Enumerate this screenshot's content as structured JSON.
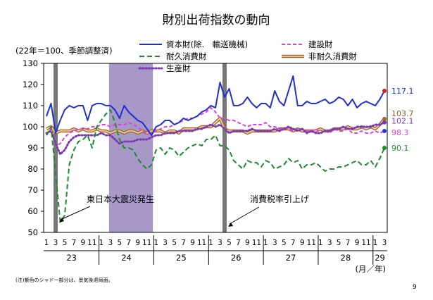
{
  "page_number": "9",
  "chart_data": {
    "type": "line",
    "title": "財別出荷指数の動向",
    "subtitle": "(22年＝100、季節調整済)",
    "x_unit_label": "(月／年)",
    "note": "(注)紫色のシャドー部分は、景気後退局面。",
    "ylim": [
      50,
      130
    ],
    "yticks": [
      50,
      60,
      70,
      80,
      90,
      100,
      110,
      120,
      130
    ],
    "x_month_labels": [
      "1",
      "3",
      "5",
      "7",
      "9",
      "11",
      "1",
      "3",
      "5",
      "7",
      "9",
      "11",
      "1",
      "3",
      "5",
      "7",
      "9",
      "11",
      "1",
      "3",
      "5",
      "7",
      "9",
      "11",
      "1",
      "3",
      "5",
      "7",
      "9",
      "11",
      "1",
      "3",
      "5",
      "7",
      "9",
      "11",
      "1",
      "3"
    ],
    "years": [
      {
        "label": "23",
        "start": 0,
        "end": 11
      },
      {
        "label": "24",
        "start": 12,
        "end": 23
      },
      {
        "label": "25",
        "start": 24,
        "end": 35
      },
      {
        "label": "26",
        "start": 36,
        "end": 47
      },
      {
        "label": "27",
        "start": 48,
        "end": 59
      },
      {
        "label": "28",
        "start": 60,
        "end": 71
      },
      {
        "label": "29",
        "start": 72,
        "end": 74
      }
    ],
    "recession_shades": [
      {
        "start": 14,
        "end": 23
      }
    ],
    "event_lines": [
      {
        "index": 2,
        "label": "東日本大震災発生"
      },
      {
        "index": 39,
        "label": "消費税率引上げ"
      }
    ],
    "series": [
      {
        "name": "資本財(除.　輸送機械)",
        "color": "#1f2fd0",
        "style": "solid",
        "end_label": "117.1",
        "values": [
          105,
          111,
          97,
          103,
          108,
          110,
          109,
          110,
          110,
          103,
          110,
          111,
          111,
          110,
          110,
          108,
          104,
          110,
          107,
          105,
          103,
          102,
          99,
          96,
          100,
          101,
          103,
          103,
          101,
          102,
          104,
          103,
          104,
          105,
          107,
          108,
          110,
          109,
          121,
          114,
          118,
          110,
          110,
          111,
          114,
          111,
          109,
          111,
          111,
          109,
          117,
          112,
          110,
          117,
          124,
          110,
          110,
          112,
          111,
          111,
          112,
          113,
          111,
          112,
          114,
          113,
          110,
          113,
          109,
          111,
          112,
          111,
          110,
          113,
          117
        ]
      },
      {
        "name": "建設財",
        "color": "#e040e0",
        "style": "dashed",
        "end_label": "98.3",
        "values": [
          96,
          99,
          91,
          92,
          95,
          97,
          98,
          99,
          99,
          99,
          100,
          100,
          101,
          101,
          100,
          101,
          101,
          101,
          102,
          101,
          100,
          98,
          97,
          97,
          98,
          99,
          100,
          100,
          101,
          102,
          103,
          104,
          104,
          105,
          106,
          107,
          109,
          107,
          104,
          104,
          103,
          103,
          102,
          101,
          100,
          101,
          101,
          101,
          102,
          100,
          100,
          99,
          99,
          99,
          98,
          99,
          99,
          98,
          98,
          99,
          97,
          98,
          97,
          99,
          98,
          98,
          99,
          97,
          97,
          98,
          97,
          97,
          98,
          97,
          98
        ]
      },
      {
        "name": "耐久消費財",
        "color": "#1e8a2e",
        "style": "dashed",
        "end_label": "90.1",
        "values": [
          96,
          100,
          78,
          55,
          58,
          82,
          89,
          93,
          94,
          96,
          90,
          100,
          103,
          106,
          108,
          102,
          94,
          90,
          90,
          89,
          85,
          82,
          80,
          82,
          89,
          90,
          87,
          90,
          89,
          86,
          88,
          90,
          91,
          92,
          91,
          94,
          94,
          96,
          91,
          91,
          89,
          84,
          82,
          80,
          84,
          83,
          83,
          81,
          84,
          83,
          80,
          81,
          82,
          85,
          83,
          84,
          80,
          82,
          82,
          83,
          81,
          79,
          80,
          80,
          81,
          81,
          82,
          83,
          84,
          82,
          82,
          84,
          81,
          85,
          90
        ]
      },
      {
        "name": "非耐久消費財",
        "color": "#a06a30",
        "style": "double",
        "end_label": "103.7",
        "values": [
          99,
          100,
          97,
          98,
          98,
          98,
          99,
          98,
          99,
          98,
          98,
          99,
          98,
          98,
          97,
          98,
          98,
          97,
          98,
          98,
          97,
          98,
          97,
          98,
          98,
          98,
          97,
          98,
          98,
          97,
          99,
          99,
          99,
          99,
          100,
          100,
          100,
          102,
          104,
          99,
          98,
          98,
          98,
          98,
          97,
          98,
          98,
          98,
          98,
          98,
          98,
          99,
          99,
          99,
          98,
          99,
          98,
          98,
          98,
          98,
          99,
          98,
          98,
          99,
          99,
          99,
          100,
          99,
          99,
          100,
          99,
          100,
          99,
          101,
          103.7
        ]
      },
      {
        "name": "生産財",
        "color": "#7b3ab0",
        "style": "dotted",
        "end_label": "102.1",
        "values": [
          97,
          98,
          92,
          87,
          89,
          93,
          95,
          96,
          96,
          96,
          96,
          96,
          97,
          96,
          96,
          94,
          92,
          93,
          93,
          93,
          94,
          94,
          94,
          95,
          96,
          96,
          97,
          97,
          97,
          98,
          98,
          98,
          98,
          99,
          99,
          100,
          101,
          100,
          101,
          99,
          97,
          98,
          98,
          98,
          98,
          99,
          98,
          98,
          98,
          98,
          99,
          98,
          99,
          100,
          99,
          98,
          99,
          97,
          98,
          97,
          97,
          98,
          98,
          99,
          99,
          100,
          99,
          99,
          100,
          100,
          100,
          100,
          101,
          101,
          102.1
        ]
      }
    ]
  }
}
